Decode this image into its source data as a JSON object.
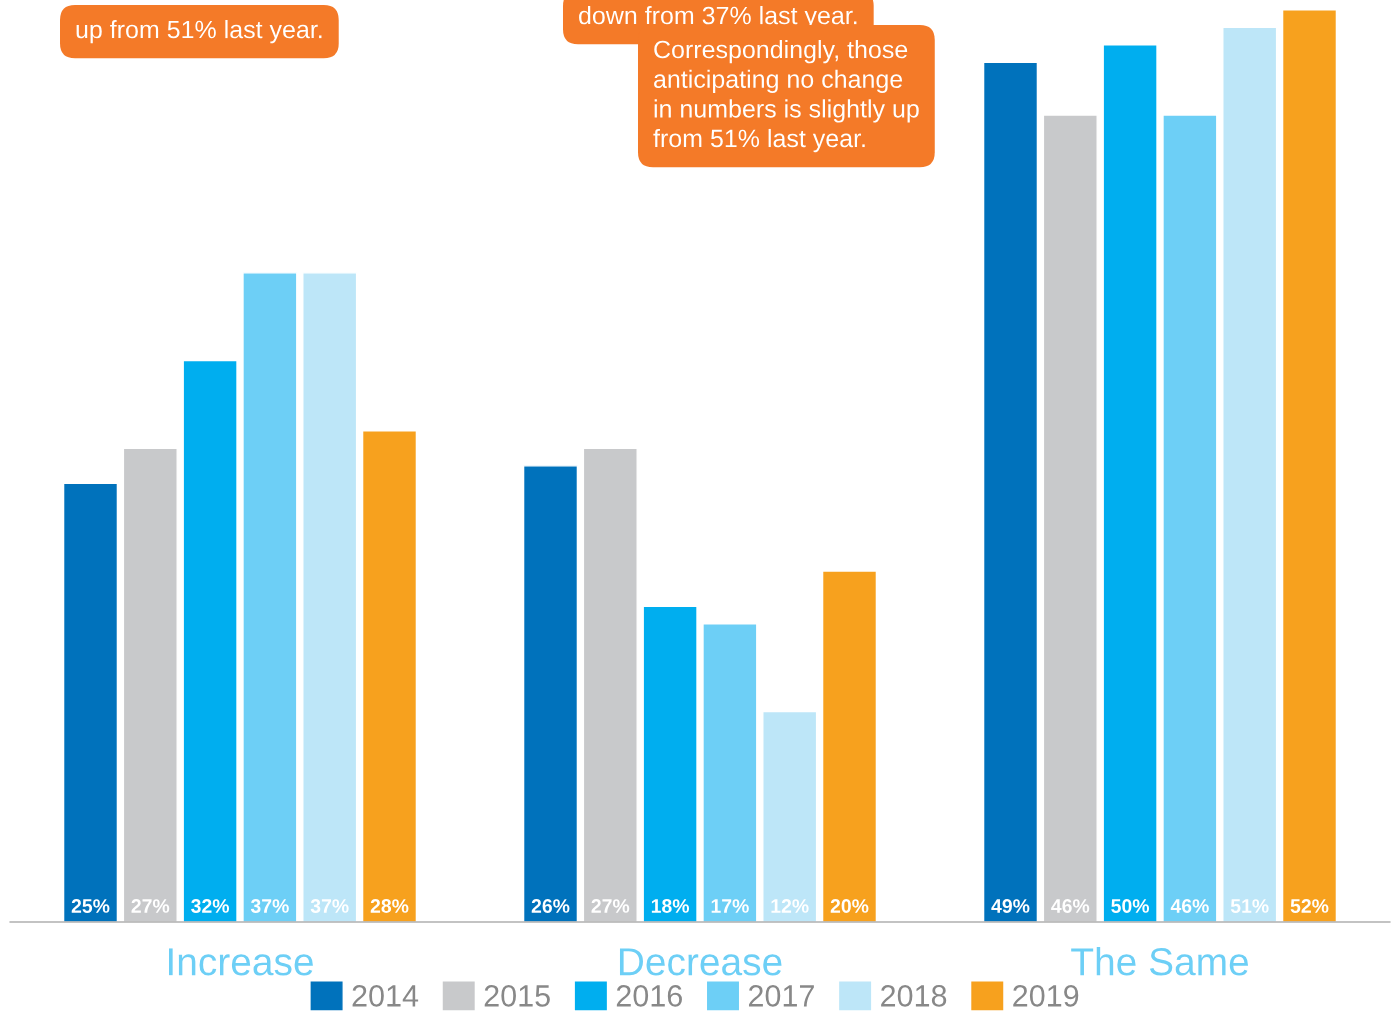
{
  "chart_data": {
    "type": "bar",
    "categories": [
      "Increase",
      "Decrease",
      "The Same"
    ],
    "series": [
      {
        "name": "2014",
        "color": "#0072bc",
        "values": [
          25,
          26,
          49
        ],
        "value_labels": [
          "25%",
          "26%",
          "49%"
        ]
      },
      {
        "name": "2015",
        "color": "#c8c9cb",
        "values": [
          27,
          27,
          46
        ],
        "value_labels": [
          "27%",
          "27%",
          "46%"
        ]
      },
      {
        "name": "2016",
        "color": "#00aeef",
        "values": [
          32,
          18,
          50
        ],
        "value_labels": [
          "32%",
          "18%",
          "50%"
        ]
      },
      {
        "name": "2017",
        "color": "#6dcff6",
        "values": [
          37,
          17,
          46
        ],
        "value_labels": [
          "37%",
          "17%",
          "46%"
        ]
      },
      {
        "name": "2018",
        "color": "#bde6f8",
        "values": [
          37,
          12,
          51
        ],
        "value_labels": [
          "37%",
          "12%",
          "51%"
        ]
      },
      {
        "name": "2019",
        "color": "#f7a11e",
        "values": [
          28,
          20,
          52
        ],
        "value_labels": [
          "28%",
          "20%",
          "52%"
        ]
      }
    ],
    "legend": "bottom",
    "grid": false,
    "annotations": [
      "up from 51% last year.",
      "down from 37% last year.",
      "Correspondingly, those\nanticipating no change\nin numbers is slightly up\nfrom 51% last year."
    ]
  }
}
